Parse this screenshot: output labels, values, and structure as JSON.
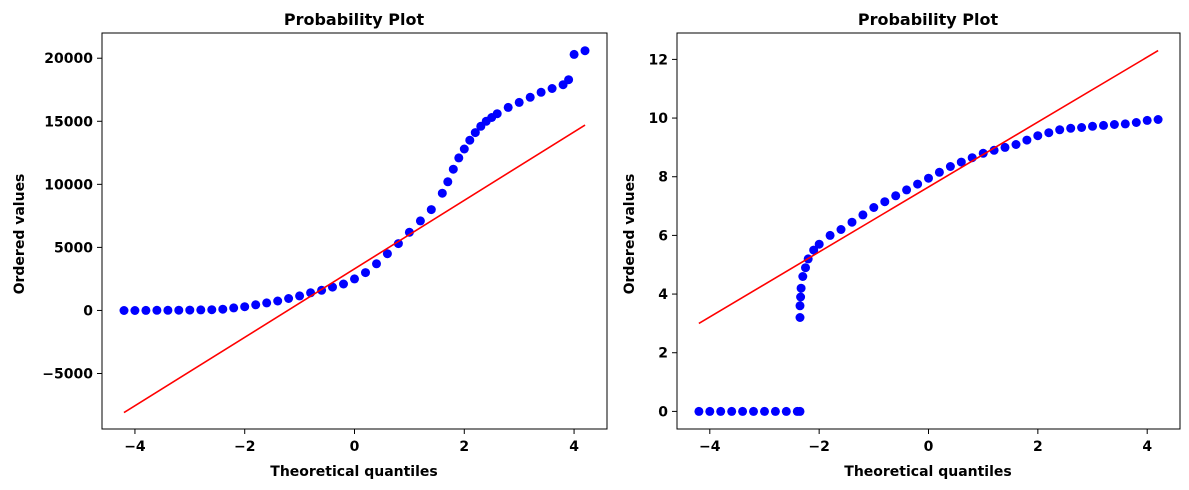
{
  "chart_data": [
    {
      "type": "scatter",
      "title": "Probability Plot",
      "xlabel": "Theoretical quantiles",
      "ylabel": "Ordered values",
      "xlim": [
        -4.6,
        4.6
      ],
      "ylim": [
        -9400,
        22000
      ],
      "grid": false,
      "marker_color": "#0000ff",
      "fit_line_color": "#ff0000",
      "x_ticks": [
        {
          "value": -4,
          "label": "−4"
        },
        {
          "value": -2,
          "label": "−2"
        },
        {
          "value": 0,
          "label": "0"
        },
        {
          "value": 2,
          "label": "2"
        },
        {
          "value": 4,
          "label": "4"
        }
      ],
      "y_ticks": [
        {
          "value": -5000,
          "label": "−5000"
        },
        {
          "value": 0,
          "label": "0"
        },
        {
          "value": 5000,
          "label": "5000"
        },
        {
          "value": 10000,
          "label": "10000"
        },
        {
          "value": 15000,
          "label": "15000"
        },
        {
          "value": 20000,
          "label": "20000"
        }
      ],
      "fit_line": {
        "x": [
          -4.2,
          4.2
        ],
        "y": [
          -8100,
          14700
        ]
      },
      "points": {
        "x": [
          -4.2,
          -4.0,
          -3.8,
          -3.6,
          -3.4,
          -3.2,
          -3.0,
          -2.8,
          -2.6,
          -2.4,
          -2.2,
          -2.0,
          -1.8,
          -1.6,
          -1.4,
          -1.2,
          -1.0,
          -0.8,
          -0.6,
          -0.4,
          -0.2,
          0.0,
          0.2,
          0.4,
          0.6,
          0.8,
          1.0,
          1.2,
          1.4,
          1.6,
          1.7,
          1.8,
          1.9,
          2.0,
          2.1,
          2.2,
          2.3,
          2.4,
          2.5,
          2.6,
          2.8,
          3.0,
          3.2,
          3.4,
          3.6,
          3.8,
          3.9,
          4.0,
          4.2
        ],
        "y": [
          0,
          0,
          5,
          10,
          15,
          20,
          30,
          40,
          60,
          100,
          200,
          300,
          450,
          600,
          750,
          950,
          1150,
          1400,
          1600,
          1850,
          2100,
          2500,
          3000,
          3700,
          4500,
          5300,
          6200,
          7100,
          8000,
          9300,
          10200,
          11200,
          12100,
          12800,
          13500,
          14100,
          14600,
          15000,
          15300,
          15600,
          16100,
          16500,
          16900,
          17300,
          17600,
          17900,
          18300,
          20300,
          20600
        ]
      }
    },
    {
      "type": "scatter",
      "title": "Probability Plot",
      "xlabel": "Theoretical quantiles",
      "ylabel": "Ordered values",
      "xlim": [
        -4.6,
        4.6
      ],
      "ylim": [
        -0.6,
        12.9
      ],
      "grid": false,
      "marker_color": "#0000ff",
      "fit_line_color": "#ff0000",
      "x_ticks": [
        {
          "value": -4,
          "label": "−4"
        },
        {
          "value": -2,
          "label": "−2"
        },
        {
          "value": 0,
          "label": "0"
        },
        {
          "value": 2,
          "label": "2"
        },
        {
          "value": 4,
          "label": "4"
        }
      ],
      "y_ticks": [
        {
          "value": 0,
          "label": "0"
        },
        {
          "value": 2,
          "label": "2"
        },
        {
          "value": 4,
          "label": "4"
        },
        {
          "value": 6,
          "label": "6"
        },
        {
          "value": 8,
          "label": "8"
        },
        {
          "value": 10,
          "label": "10"
        },
        {
          "value": 12,
          "label": "12"
        }
      ],
      "fit_line": {
        "x": [
          -4.2,
          4.2
        ],
        "y": [
          3.0,
          12.3
        ]
      },
      "points": {
        "x": [
          -4.2,
          -4.0,
          -3.8,
          -3.6,
          -3.4,
          -3.2,
          -3.0,
          -2.8,
          -2.6,
          -2.4,
          -2.35,
          -2.35,
          -2.35,
          -2.34,
          -2.33,
          -2.3,
          -2.25,
          -2.2,
          -2.1,
          -2.0,
          -1.8,
          -1.6,
          -1.4,
          -1.2,
          -1.0,
          -0.8,
          -0.6,
          -0.4,
          -0.2,
          0.0,
          0.2,
          0.4,
          0.6,
          0.8,
          1.0,
          1.2,
          1.4,
          1.6,
          1.8,
          2.0,
          2.2,
          2.4,
          2.6,
          2.8,
          3.0,
          3.2,
          3.4,
          3.6,
          3.8,
          4.0,
          4.2
        ],
        "y": [
          0,
          0,
          0,
          0,
          0,
          0,
          0,
          0,
          0,
          0,
          0,
          3.2,
          3.6,
          3.9,
          4.2,
          4.6,
          4.9,
          5.2,
          5.5,
          5.7,
          6.0,
          6.2,
          6.45,
          6.7,
          6.95,
          7.15,
          7.35,
          7.55,
          7.75,
          7.95,
          8.15,
          8.35,
          8.5,
          8.65,
          8.8,
          8.9,
          9.0,
          9.1,
          9.25,
          9.4,
          9.5,
          9.6,
          9.65,
          9.68,
          9.72,
          9.75,
          9.78,
          9.8,
          9.85,
          9.92,
          9.95
        ]
      }
    }
  ]
}
